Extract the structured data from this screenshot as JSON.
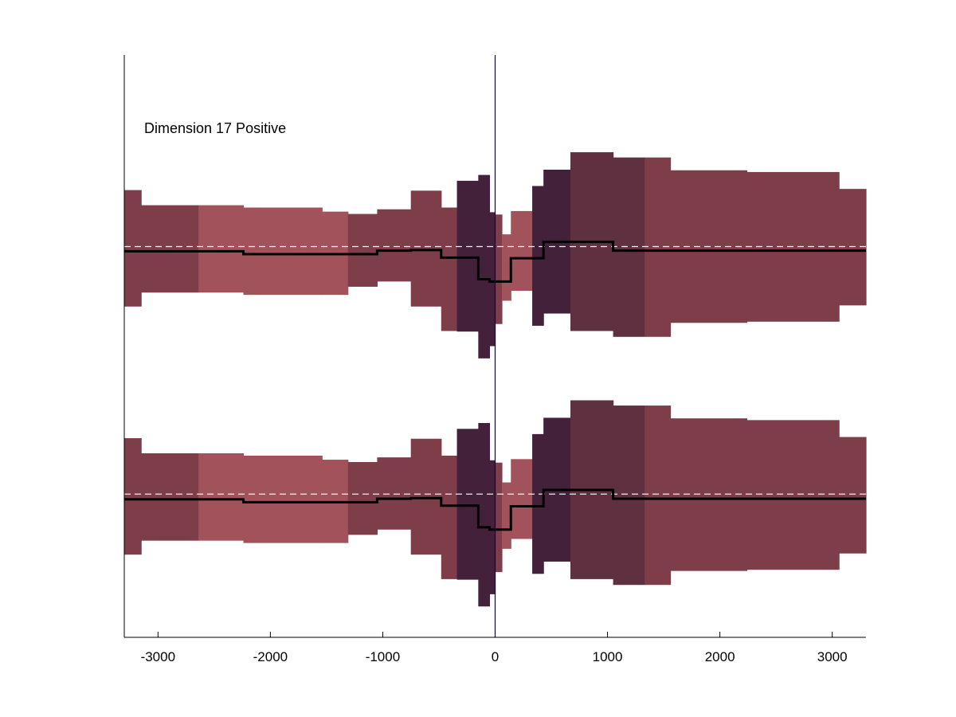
{
  "chart_data": {
    "type": "area",
    "title": "",
    "annotation": "Dimension 17 Positive",
    "xlabel": "",
    "ylabel": "",
    "xlim": [
      -3300,
      3300
    ],
    "ylim": [
      0,
      1
    ],
    "grid": false,
    "x_ticks": [
      {
        "value": -3000,
        "label": "-3000"
      },
      {
        "value": -2000,
        "label": "-2000"
      },
      {
        "value": -1000,
        "label": "-1000"
      },
      {
        "value": 0,
        "label": "0"
      },
      {
        "value": 1000,
        "label": "1000"
      },
      {
        "value": 2000,
        "label": "2000"
      },
      {
        "value": 3000,
        "label": "3000"
      }
    ],
    "colors": {
      "medium": "#7d3e4a",
      "light": "#a1525a",
      "dark": "#5e3040",
      "darkest": "#44213a",
      "mean_line": "#000000",
      "baseline_dash": "#ffffff",
      "zero_line": "#000080",
      "axis": "#000000"
    },
    "series": [
      {
        "baseline": 0.671,
        "segments": [
          {
            "x0": -3300,
            "x1": -3150,
            "upper": 0.768,
            "lower": 0.568,
            "mean": 0.663,
            "shade": "medium"
          },
          {
            "x0": -3150,
            "x1": -2640,
            "upper": 0.742,
            "lower": 0.592,
            "mean": 0.663,
            "shade": "medium"
          },
          {
            "x0": -2640,
            "x1": -2240,
            "upper": 0.742,
            "lower": 0.592,
            "mean": 0.663,
            "shade": "light"
          },
          {
            "x0": -2240,
            "x1": -1540,
            "upper": 0.738,
            "lower": 0.588,
            "mean": 0.658,
            "shade": "light"
          },
          {
            "x0": -1540,
            "x1": -1310,
            "upper": 0.731,
            "lower": 0.588,
            "mean": 0.658,
            "shade": "light"
          },
          {
            "x0": -1310,
            "x1": -1050,
            "upper": 0.727,
            "lower": 0.602,
            "mean": 0.658,
            "shade": "medium"
          },
          {
            "x0": -1050,
            "x1": -750,
            "upper": 0.735,
            "lower": 0.611,
            "mean": 0.664,
            "shade": "medium"
          },
          {
            "x0": -750,
            "x1": -480,
            "upper": 0.767,
            "lower": 0.568,
            "mean": 0.665,
            "shade": "medium"
          },
          {
            "x0": -480,
            "x1": -340,
            "upper": 0.738,
            "lower": 0.526,
            "mean": 0.652,
            "shade": "medium"
          },
          {
            "x0": -340,
            "x1": -150,
            "upper": 0.784,
            "lower": 0.525,
            "mean": 0.652,
            "shade": "darkest"
          },
          {
            "x0": -150,
            "x1": -50,
            "upper": 0.794,
            "lower": 0.479,
            "mean": 0.615,
            "shade": "darkest"
          },
          {
            "x0": -50,
            "x1": 0,
            "upper": 0.73,
            "lower": 0.5,
            "mean": 0.611,
            "shade": "darkest"
          },
          {
            "x0": 0,
            "x1": 60,
            "upper": 0.726,
            "lower": 0.538,
            "mean": 0.611,
            "shade": "medium"
          },
          {
            "x0": 60,
            "x1": 140,
            "upper": 0.692,
            "lower": 0.578,
            "mean": 0.611,
            "shade": "light"
          },
          {
            "x0": 140,
            "x1": 330,
            "upper": 0.732,
            "lower": 0.595,
            "mean": 0.651,
            "shade": "light"
          },
          {
            "x0": 330,
            "x1": 430,
            "upper": 0.775,
            "lower": 0.535,
            "mean": 0.651,
            "shade": "darkest"
          },
          {
            "x0": 430,
            "x1": 670,
            "upper": 0.803,
            "lower": 0.556,
            "mean": 0.679,
            "shade": "darkest"
          },
          {
            "x0": 670,
            "x1": 1050,
            "upper": 0.833,
            "lower": 0.526,
            "mean": 0.679,
            "shade": "dark"
          },
          {
            "x0": 1050,
            "x1": 1330,
            "upper": 0.824,
            "lower": 0.516,
            "mean": 0.664,
            "shade": "dark"
          },
          {
            "x0": 1330,
            "x1": 1560,
            "upper": 0.824,
            "lower": 0.516,
            "mean": 0.664,
            "shade": "medium"
          },
          {
            "x0": 1560,
            "x1": 2240,
            "upper": 0.802,
            "lower": 0.54,
            "mean": 0.664,
            "shade": "medium"
          },
          {
            "x0": 2240,
            "x1": 3060,
            "upper": 0.799,
            "lower": 0.542,
            "mean": 0.664,
            "shade": "medium"
          },
          {
            "x0": 3060,
            "x1": 3300,
            "upper": 0.77,
            "lower": 0.57,
            "mean": 0.664,
            "shade": "medium"
          }
        ]
      },
      {
        "baseline": 0.246,
        "segments": [
          {
            "x0": -3300,
            "x1": -3150,
            "upper": 0.342,
            "lower": 0.142,
            "mean": 0.237,
            "shade": "medium"
          },
          {
            "x0": -3150,
            "x1": -2640,
            "upper": 0.316,
            "lower": 0.166,
            "mean": 0.237,
            "shade": "medium"
          },
          {
            "x0": -2640,
            "x1": -2240,
            "upper": 0.316,
            "lower": 0.166,
            "mean": 0.237,
            "shade": "light"
          },
          {
            "x0": -2240,
            "x1": -1540,
            "upper": 0.312,
            "lower": 0.162,
            "mean": 0.232,
            "shade": "light"
          },
          {
            "x0": -1540,
            "x1": -1310,
            "upper": 0.305,
            "lower": 0.162,
            "mean": 0.232,
            "shade": "light"
          },
          {
            "x0": -1310,
            "x1": -1050,
            "upper": 0.301,
            "lower": 0.176,
            "mean": 0.232,
            "shade": "medium"
          },
          {
            "x0": -1050,
            "x1": -750,
            "upper": 0.309,
            "lower": 0.185,
            "mean": 0.238,
            "shade": "medium"
          },
          {
            "x0": -750,
            "x1": -480,
            "upper": 0.341,
            "lower": 0.142,
            "mean": 0.239,
            "shade": "medium"
          },
          {
            "x0": -480,
            "x1": -340,
            "upper": 0.312,
            "lower": 0.1,
            "mean": 0.226,
            "shade": "medium"
          },
          {
            "x0": -340,
            "x1": -150,
            "upper": 0.358,
            "lower": 0.099,
            "mean": 0.226,
            "shade": "darkest"
          },
          {
            "x0": -150,
            "x1": -50,
            "upper": 0.368,
            "lower": 0.053,
            "mean": 0.189,
            "shade": "darkest"
          },
          {
            "x0": -50,
            "x1": 0,
            "upper": 0.304,
            "lower": 0.074,
            "mean": 0.185,
            "shade": "darkest"
          },
          {
            "x0": 0,
            "x1": 60,
            "upper": 0.3,
            "lower": 0.112,
            "mean": 0.185,
            "shade": "medium"
          },
          {
            "x0": 60,
            "x1": 140,
            "upper": 0.266,
            "lower": 0.152,
            "mean": 0.185,
            "shade": "light"
          },
          {
            "x0": 140,
            "x1": 330,
            "upper": 0.306,
            "lower": 0.169,
            "mean": 0.225,
            "shade": "light"
          },
          {
            "x0": 330,
            "x1": 430,
            "upper": 0.349,
            "lower": 0.109,
            "mean": 0.225,
            "shade": "darkest"
          },
          {
            "x0": 430,
            "x1": 670,
            "upper": 0.377,
            "lower": 0.13,
            "mean": 0.253,
            "shade": "darkest"
          },
          {
            "x0": 670,
            "x1": 1050,
            "upper": 0.407,
            "lower": 0.1,
            "mean": 0.253,
            "shade": "dark"
          },
          {
            "x0": 1050,
            "x1": 1330,
            "upper": 0.398,
            "lower": 0.09,
            "mean": 0.238,
            "shade": "dark"
          },
          {
            "x0": 1330,
            "x1": 1560,
            "upper": 0.398,
            "lower": 0.09,
            "mean": 0.238,
            "shade": "medium"
          },
          {
            "x0": 1560,
            "x1": 2240,
            "upper": 0.376,
            "lower": 0.114,
            "mean": 0.238,
            "shade": "medium"
          },
          {
            "x0": 2240,
            "x1": 3060,
            "upper": 0.373,
            "lower": 0.116,
            "mean": 0.238,
            "shade": "medium"
          },
          {
            "x0": 3060,
            "x1": 3300,
            "upper": 0.344,
            "lower": 0.144,
            "mean": 0.238,
            "shade": "medium"
          }
        ]
      }
    ]
  }
}
